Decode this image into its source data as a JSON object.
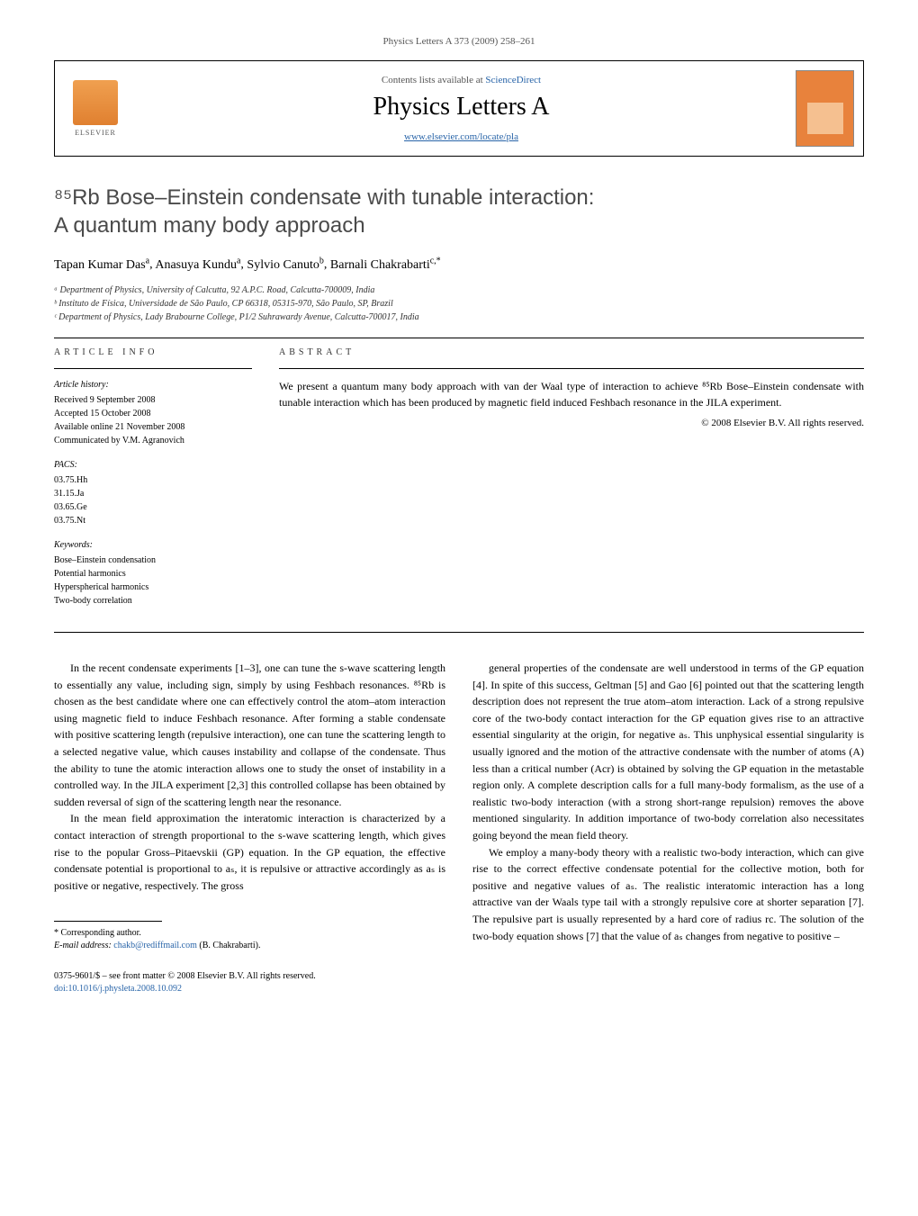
{
  "journal_header": "Physics Letters A 373 (2009) 258–261",
  "header": {
    "contents_prefix": "Contents lists available at ",
    "contents_link": "ScienceDirect",
    "journal_title": "Physics Letters A",
    "journal_url": "www.elsevier.com/locate/pla",
    "elsevier_label": "ELSEVIER"
  },
  "title_line1": "⁸⁵Rb Bose–Einstein condensate with tunable interaction:",
  "title_line2": "A quantum many body approach",
  "authors_html": "Tapan Kumar Das",
  "authors": [
    {
      "name": "Tapan Kumar Das",
      "marker": "a"
    },
    {
      "name": "Anasuya Kundu",
      "marker": "a"
    },
    {
      "name": "Sylvio Canuto",
      "marker": "b"
    },
    {
      "name": "Barnali Chakrabarti",
      "marker": "c,*"
    }
  ],
  "affiliations": [
    "ᵃ Department of Physics, University of Calcutta, 92 A.P.C. Road, Calcutta-700009, India",
    "ᵇ Instituto de Física, Universidade de São Paulo, CP 66318, 05315-970, São Paulo, SP, Brazil",
    "ᶜ Department of Physics, Lady Brabourne College, P1/2 Suhrawardy Avenue, Calcutta-700017, India"
  ],
  "article_info": {
    "heading": "ARTICLE INFO",
    "history_heading": "Article history:",
    "history": [
      "Received 9 September 2008",
      "Accepted 15 October 2008",
      "Available online 21 November 2008",
      "Communicated by V.M. Agranovich"
    ],
    "pacs_heading": "PACS:",
    "pacs": [
      "03.75.Hh",
      "31.15.Ja",
      "03.65.Ge",
      "03.75.Nt"
    ],
    "keywords_heading": "Keywords:",
    "keywords": [
      "Bose–Einstein condensation",
      "Potential harmonics",
      "Hyperspherical harmonics",
      "Two-body correlation"
    ]
  },
  "abstract": {
    "heading": "ABSTRACT",
    "text": "We present a quantum many body approach with van der Waal type of interaction to achieve ⁸⁵Rb Bose–Einstein condensate with tunable interaction which has been produced by magnetic field induced Feshbach resonance in the JILA experiment.",
    "copyright": "© 2008 Elsevier B.V. All rights reserved."
  },
  "body": {
    "col1_p1": "In the recent condensate experiments [1–3], one can tune the s-wave scattering length to essentially any value, including sign, simply by using Feshbach resonances. ⁸⁵Rb is chosen as the best candidate where one can effectively control the atom–atom interaction using magnetic field to induce Feshbach resonance. After forming a stable condensate with positive scattering length (repulsive interaction), one can tune the scattering length to a selected negative value, which causes instability and collapse of the condensate. Thus the ability to tune the atomic interaction allows one to study the onset of instability in a controlled way. In the JILA experiment [2,3] this controlled collapse has been obtained by sudden reversal of sign of the scattering length near the resonance.",
    "col1_p2": "In the mean field approximation the interatomic interaction is characterized by a contact interaction of strength proportional to the s-wave scattering length, which gives rise to the popular Gross–Pitaevskii (GP) equation. In the GP equation, the effective condensate potential is proportional to aₛ, it is repulsive or attractive accordingly as aₛ is positive or negative, respectively. The gross",
    "col2_p1": "general properties of the condensate are well understood in terms of the GP equation [4]. In spite of this success, Geltman [5] and Gao [6] pointed out that the scattering length description does not represent the true atom–atom interaction. Lack of a strong repulsive core of the two-body contact interaction for the GP equation gives rise to an attractive essential singularity at the origin, for negative aₛ. This unphysical essential singularity is usually ignored and the motion of the attractive condensate with the number of atoms (A) less than a critical number (Acr) is obtained by solving the GP equation in the metastable region only. A complete description calls for a full many-body formalism, as the use of a realistic two-body interaction (with a strong short-range repulsion) removes the above mentioned singularity. In addition importance of two-body correlation also necessitates going beyond the mean field theory.",
    "col2_p2": "We employ a many-body theory with a realistic two-body interaction, which can give rise to the correct effective condensate potential for the collective motion, both for positive and negative values of aₛ. The realistic interatomic interaction has a long attractive van der Waals type tail with a strongly repulsive core at shorter separation [7]. The repulsive part is usually represented by a hard core of radius rc. The solution of the two-body equation shows [7] that the value of aₛ changes from negative to positive –"
  },
  "footnote": {
    "corresponding": "* Corresponding author.",
    "email_label": "E-mail address: ",
    "email": "chakb@rediffmail.com",
    "email_name": " (B. Chakrabarti)."
  },
  "footer": {
    "line1": "0375-9601/$ – see front matter  © 2008 Elsevier B.V. All rights reserved.",
    "doi": "doi:10.1016/j.physleta.2008.10.092"
  },
  "colors": {
    "link": "#2864a8",
    "text": "#000000",
    "elsevier_orange": "#e08030",
    "cover_orange": "#e8823c"
  }
}
